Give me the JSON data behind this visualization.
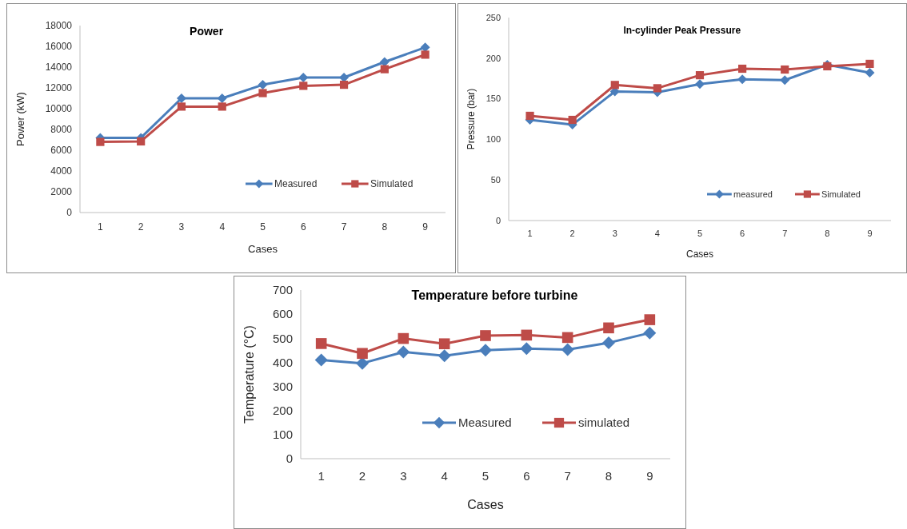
{
  "chart_data": [
    {
      "type": "line",
      "title": "Power",
      "xlabel": "Cases",
      "ylabel": "Power (kW)",
      "categories": [
        "1",
        "2",
        "3",
        "4",
        "5",
        "6",
        "7",
        "8",
        "9"
      ],
      "ylim": [
        0,
        18000
      ],
      "yticks": [
        0,
        2000,
        4000,
        6000,
        8000,
        10000,
        12000,
        14000,
        16000,
        18000
      ],
      "legend": "bottom right",
      "series": [
        {
          "name": "Measured",
          "color": "#4a7ebb",
          "marker": "diamond",
          "values": [
            7200,
            7200,
            11000,
            11000,
            12300,
            13000,
            13000,
            14500,
            15900
          ]
        },
        {
          "name": "Simulated",
          "color": "#be4b48",
          "marker": "square",
          "values": [
            6800,
            6850,
            10200,
            10200,
            11500,
            12200,
            12300,
            13800,
            15200
          ]
        }
      ]
    },
    {
      "type": "line",
      "title": "In-cylinder Peak Pressure",
      "xlabel": "Cases",
      "ylabel": "Pressure (bar)",
      "categories": [
        "1",
        "2",
        "3",
        "4",
        "5",
        "6",
        "7",
        "8",
        "9"
      ],
      "ylim": [
        0,
        250
      ],
      "yticks": [
        0,
        50,
        100,
        150,
        200,
        250
      ],
      "legend": "bottom right",
      "series": [
        {
          "name": "measured",
          "color": "#4a7ebb",
          "marker": "diamond",
          "values": [
            124,
            118,
            159,
            158,
            168,
            174,
            173,
            192,
            182
          ]
        },
        {
          "name": "Simulated",
          "color": "#be4b48",
          "marker": "square",
          "values": [
            129,
            124,
            167,
            163,
            179,
            187,
            186,
            190,
            193
          ]
        }
      ]
    },
    {
      "type": "line",
      "title": "Temperature before turbine",
      "xlabel": "Cases",
      "ylabel": "Temperature (°C)",
      "categories": [
        "1",
        "2",
        "3",
        "4",
        "5",
        "6",
        "7",
        "8",
        "9"
      ],
      "ylim": [
        0,
        700
      ],
      "yticks": [
        0,
        100,
        200,
        300,
        400,
        500,
        600,
        700
      ],
      "legend": "bottom right",
      "series": [
        {
          "name": "Measured",
          "color": "#4a7ebb",
          "marker": "diamond",
          "values": [
            410,
            396,
            443,
            427,
            450,
            457,
            453,
            481,
            522
          ]
        },
        {
          "name": "simulated",
          "color": "#be4b48",
          "marker": "square",
          "values": [
            478,
            437,
            499,
            477,
            511,
            513,
            503,
            543,
            577
          ]
        }
      ]
    }
  ]
}
